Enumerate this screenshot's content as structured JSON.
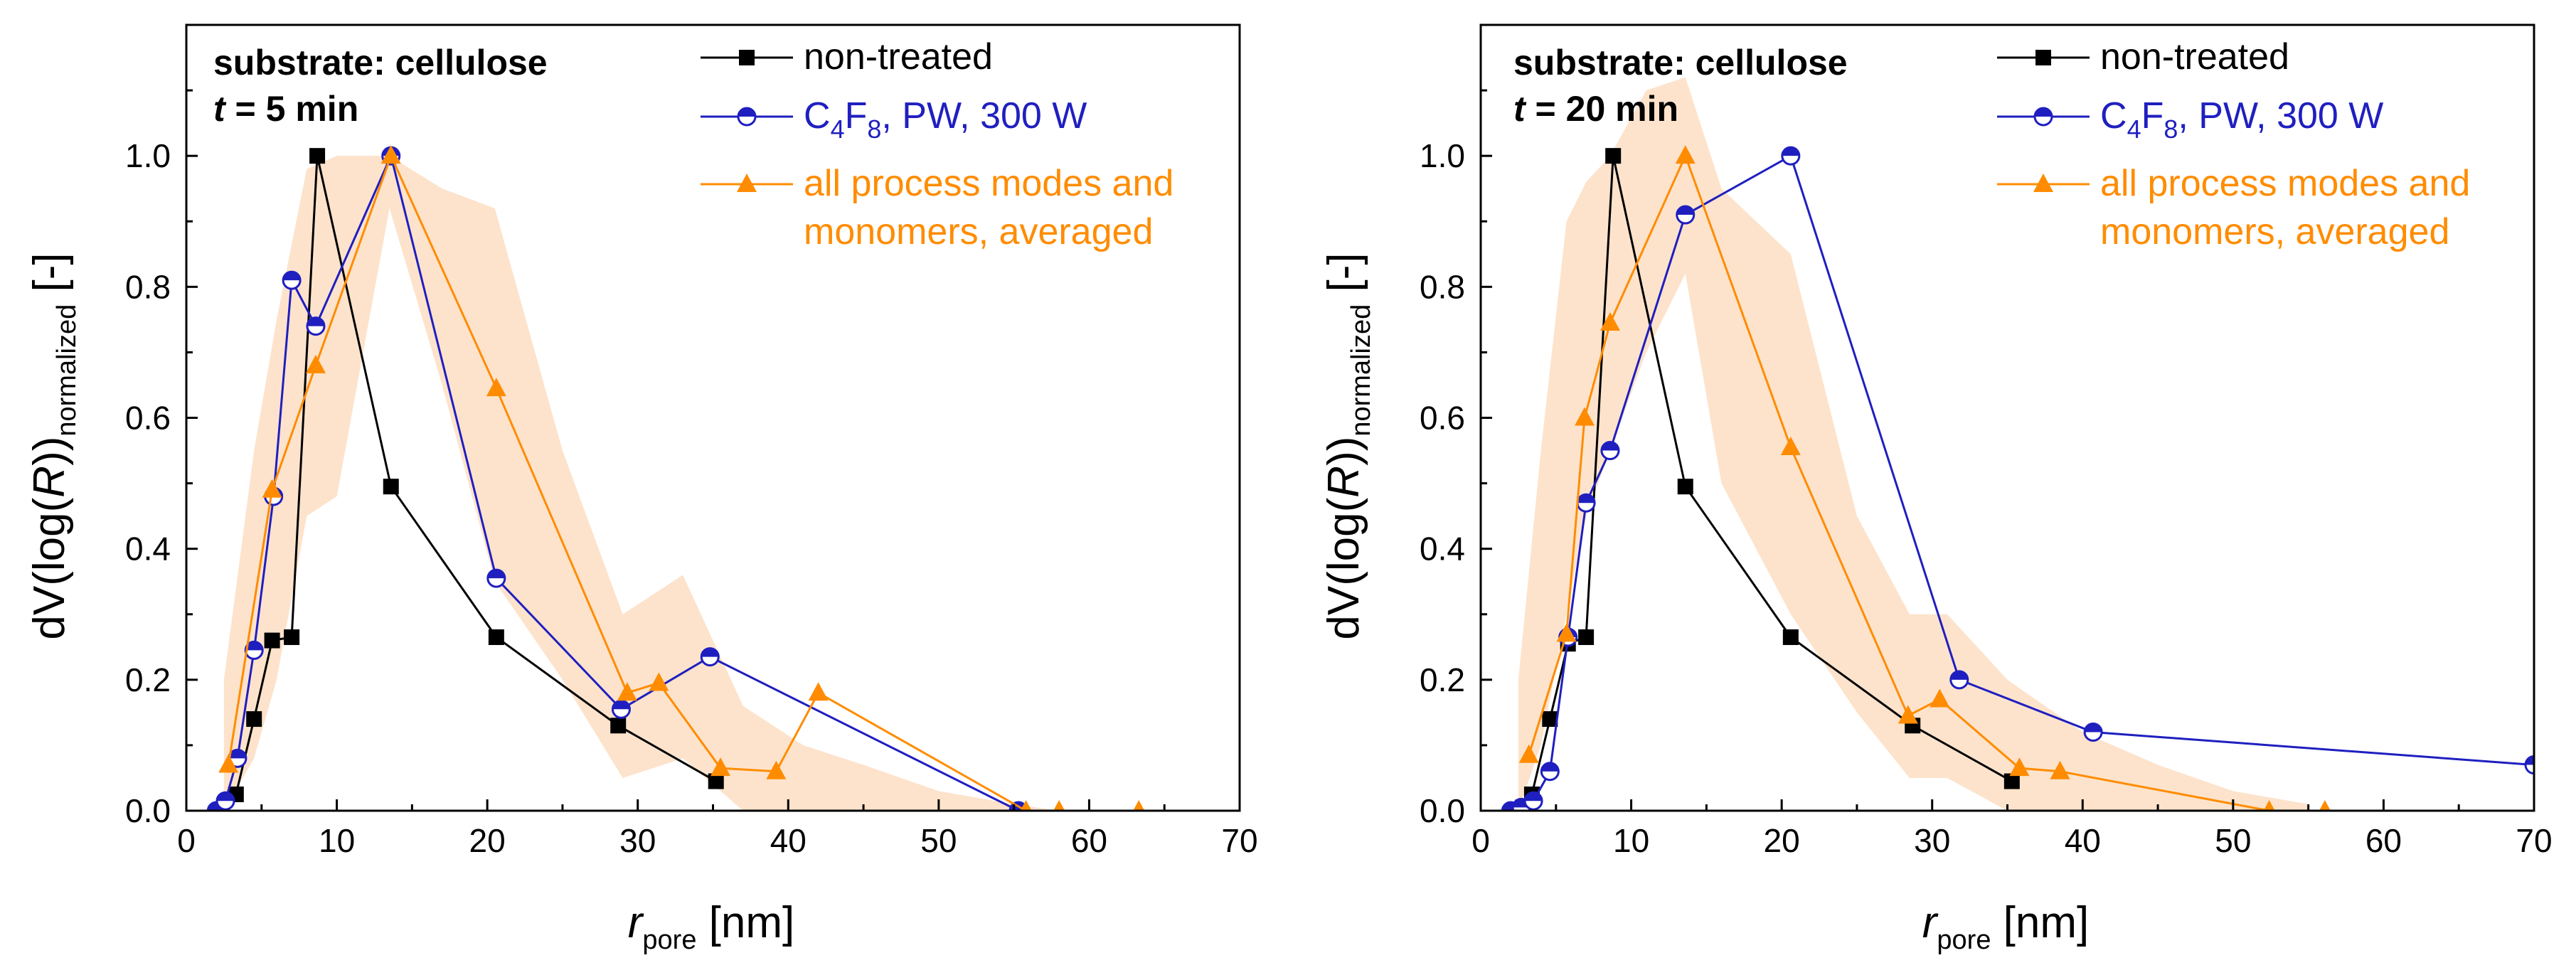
{
  "chart_data": [
    {
      "type": "line",
      "title": "",
      "annotation": {
        "substrate": "substrate: cellulose",
        "time_var": "t",
        "time_rest": " = 5 min"
      },
      "xlabel": {
        "var": "r",
        "sub": "pore",
        "unit": " [nm]"
      },
      "ylabel": {
        "pre": "dV(log(",
        "var": "R",
        "post": "))",
        "sub": "normalized",
        "unit": " [-]"
      },
      "xlim": [
        0,
        70
      ],
      "ylim": [
        0,
        1.2
      ],
      "xticks": [
        0,
        10,
        20,
        30,
        40,
        50,
        60,
        70
      ],
      "yticks": [
        0.0,
        0.2,
        0.4,
        0.6,
        0.8,
        1.0
      ],
      "xtick_labels": [
        "0",
        "10",
        "20",
        "30",
        "40",
        "50",
        "60",
        "70"
      ],
      "ytick_labels": [
        "0.0",
        "0.2",
        "0.4",
        "0.6",
        "0.8",
        "1.0"
      ],
      "band": {
        "name": "averaged spread",
        "color": "#fde3cc",
        "x": [
          2.5,
          4.5,
          6,
          8,
          10,
          13.5,
          17,
          20.5,
          25,
          29,
          33,
          37,
          41,
          45,
          50,
          55,
          58
        ],
        "upper": [
          0.2,
          0.55,
          0.75,
          0.98,
          1.0,
          1.0,
          0.95,
          0.92,
          0.55,
          0.3,
          0.36,
          0.16,
          0.1,
          0.07,
          0.03,
          0.01,
          0.0
        ],
        "lower": [
          0.0,
          0.08,
          0.2,
          0.45,
          0.48,
          0.92,
          0.65,
          0.35,
          0.2,
          0.05,
          0.08,
          0.0,
          0.0,
          0.0,
          0.0,
          0.0,
          0.0
        ]
      },
      "series": [
        {
          "name": "non-treated",
          "color": "#000000",
          "marker": "square",
          "x": [
            3.3,
            4.5,
            5.7,
            7,
            8.7,
            13.6,
            20.6,
            28.7,
            35.2
          ],
          "y": [
            0.025,
            0.14,
            0.26,
            0.265,
            1.0,
            0.495,
            0.265,
            0.13,
            0.045
          ]
        },
        {
          "name": "C4F8, PW, 300 W",
          "color": "#1f1fc0",
          "marker": "half-circle",
          "x": [
            2.0,
            2.6,
            3.4,
            4.5,
            5.8,
            7.0,
            8.6,
            13.6,
            20.6,
            28.9,
            34.8,
            55.3
          ],
          "y": [
            0.0,
            0.015,
            0.08,
            0.245,
            0.48,
            0.81,
            0.74,
            1.0,
            0.355,
            0.155,
            0.235,
            0.0
          ]
        },
        {
          "name": "all process modes and monomers, averaged",
          "color": "#ff8c00",
          "marker": "triangle",
          "x": [
            2.8,
            5.7,
            8.6,
            13.6,
            20.6,
            29.3,
            31.4,
            35.5,
            39.2,
            42.0,
            55.8,
            58.0,
            63.3
          ],
          "y": [
            0.07,
            0.49,
            0.68,
            1.0,
            0.645,
            0.18,
            0.195,
            0.065,
            0.06,
            0.18,
            0.0,
            0.0,
            0.0
          ]
        }
      ],
      "legend": [
        {
          "label": "non-treated"
        },
        {
          "label_html": true,
          "l1": "C",
          "s1": "4",
          "l2": "F",
          "s2": "8",
          "l3": ", PW, 300 W"
        },
        {
          "label1": "all process modes and",
          "label2": "monomers, averaged"
        }
      ]
    },
    {
      "type": "line",
      "title": "",
      "annotation": {
        "substrate": "substrate: cellulose",
        "time_var": "t",
        "time_rest": " = 20 min"
      },
      "xlabel": {
        "var": "r",
        "sub": "pore",
        "unit": " [nm]"
      },
      "ylabel": {
        "pre": "dV(log(",
        "var": "R",
        "post": "))",
        "sub": "normalized",
        "unit": " [-]"
      },
      "xlim": [
        0,
        70
      ],
      "ylim": [
        0,
        1.2
      ],
      "xticks": [
        0,
        10,
        20,
        30,
        40,
        50,
        60,
        70
      ],
      "yticks": [
        0.0,
        0.2,
        0.4,
        0.6,
        0.8,
        1.0
      ],
      "xtick_labels": [
        "0",
        "10",
        "20",
        "30",
        "40",
        "50",
        "60",
        "70"
      ],
      "ytick_labels": [
        "0.0",
        "0.2",
        "0.4",
        "0.6",
        "0.8",
        "1.0"
      ],
      "band": {
        "name": "averaged spread",
        "color": "#fde3cc",
        "x": [
          2.5,
          4,
          5.7,
          7,
          8.6,
          11,
          13.6,
          16,
          20.6,
          25,
          28.5,
          31,
          35,
          40,
          45,
          50,
          55
        ],
        "upper": [
          0.2,
          0.55,
          0.9,
          0.96,
          1.0,
          1.1,
          1.12,
          0.95,
          0.85,
          0.45,
          0.3,
          0.3,
          0.2,
          0.12,
          0.07,
          0.03,
          0.01
        ],
        "lower": [
          0.0,
          0.1,
          0.3,
          0.45,
          0.55,
          0.7,
          0.82,
          0.5,
          0.3,
          0.15,
          0.05,
          0.05,
          0.0,
          0.0,
          0.0,
          0.0,
          0.0
        ]
      },
      "series": [
        {
          "name": "non-treated",
          "color": "#000000",
          "marker": "square",
          "x": [
            2.2,
            2.8,
            3.4,
            4.6,
            5.8,
            7.0,
            8.8,
            13.6,
            20.6,
            28.7,
            35.3
          ],
          "y": [
            0.0,
            0.005,
            0.025,
            0.14,
            0.255,
            0.265,
            1.0,
            0.495,
            0.265,
            0.13,
            0.045
          ]
        },
        {
          "name": "C4F8, PW, 300 W",
          "color": "#1f1fc0",
          "marker": "half-circle",
          "x": [
            2.0,
            2.7,
            3.5,
            4.6,
            5.8,
            7.0,
            8.6,
            13.6,
            20.6,
            31.8,
            40.7,
            70.0
          ],
          "y": [
            0.0,
            0.005,
            0.015,
            0.06,
            0.265,
            0.47,
            0.55,
            0.91,
            1.0,
            0.2,
            0.12,
            0.07
          ]
        },
        {
          "name": "all process modes and monomers, averaged",
          "color": "#ff8c00",
          "marker": "triangle",
          "x": [
            3.2,
            5.7,
            6.9,
            8.6,
            13.6,
            20.6,
            28.4,
            30.5,
            35.8,
            38.5,
            52.4,
            56.1
          ],
          "y": [
            0.085,
            0.27,
            0.6,
            0.745,
            1.0,
            0.555,
            0.145,
            0.17,
            0.065,
            0.06,
            0.0,
            0.0
          ]
        }
      ],
      "legend": [
        {
          "label": "non-treated"
        },
        {
          "label_html": true,
          "l1": "C",
          "s1": "4",
          "l2": "F",
          "s2": "8",
          "l3": ", PW, 300 W"
        },
        {
          "label1": "all process modes and",
          "label2": "monomers, averaged"
        }
      ]
    }
  ]
}
